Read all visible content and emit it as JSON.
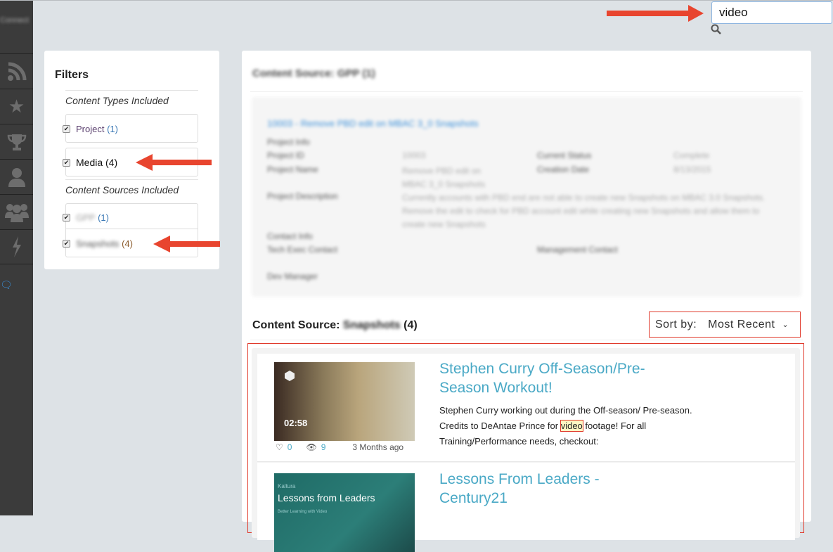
{
  "sidebar": {
    "brand": "Connect",
    "items": [
      {
        "icon": "rss-icon",
        "glyph": "◉"
      },
      {
        "icon": "star-icon",
        "glyph": "★"
      },
      {
        "icon": "trophy-icon",
        "glyph": "🏆"
      },
      {
        "icon": "user-icon",
        "glyph": "👤"
      },
      {
        "icon": "group-icon",
        "glyph": "👥"
      },
      {
        "icon": "lightning-icon",
        "glyph": "ϟ"
      }
    ],
    "chat_glyph": "🗨"
  },
  "search": {
    "value": "video"
  },
  "filters": {
    "title": "Filters",
    "types_heading": "Content Types Included",
    "types": [
      {
        "label": "Project",
        "count": "(1)",
        "checked": true
      },
      {
        "label": "Media",
        "count": "(4)",
        "checked": true
      }
    ],
    "sources_heading": "Content Sources Included",
    "sources": [
      {
        "label": "GPP",
        "count": "(1)",
        "checked": true
      },
      {
        "label": "Snapshots",
        "count": "(4)",
        "checked": true
      }
    ]
  },
  "gpp": {
    "heading": "Content Source: GPP (1)",
    "project_link": "10003 - Remove PBD edit on MBAC 3_0 Snapshots",
    "project_info": "Project Info",
    "project_id_label": "Project ID",
    "project_id": "10003",
    "status_label": "Current Status",
    "status": "Complete",
    "name_label": "Project Name",
    "name": "Remove PBD edit on MBAC 3_0 Snapshots",
    "creation_label": "Creation Date",
    "creation": "8/13/2015",
    "desc_label": "Project Description",
    "desc": "Currently accounts with PBD end are not able to create new Snapshots on MBAC 3.0 Snapshots. Remove the edit to check for PBD account edit while creating new Snapshots and allow them to create new Snapshots",
    "contact_info": "Contact Info",
    "tech_label": "Tech Exec Contact",
    "mgmt_label": "Management Contact",
    "dev_label": "Dev Manager"
  },
  "snapshots": {
    "heading_prefix": "Content Source:",
    "source_name": "Snapshots",
    "count": "(4)",
    "sort_label": "Sort by:",
    "sort_value": "Most Recent",
    "items": [
      {
        "title": "Stephen Curry Off-Season/Pre-Season Workout!",
        "duration": "02:58",
        "desc_before": "Stephen Curry working out during the Off-season/ Pre-season. Credits to DeAntae Prince for ",
        "desc_highlight": "video",
        "desc_after": " footage! For all Training/Performance needs, checkout:",
        "likes": "0",
        "views": "9",
        "age": "3 Months ago"
      },
      {
        "title": "Lessons From Leaders - Century21",
        "thumb_brand": "Kaltura",
        "thumb_title": "Lessons from Leaders",
        "thumb_sub": "Better Learning with Video"
      }
    ]
  },
  "colors": {
    "accent": "#4aa9c6",
    "annotation": "#e8452f",
    "sidebar": "#3b3b3b"
  }
}
